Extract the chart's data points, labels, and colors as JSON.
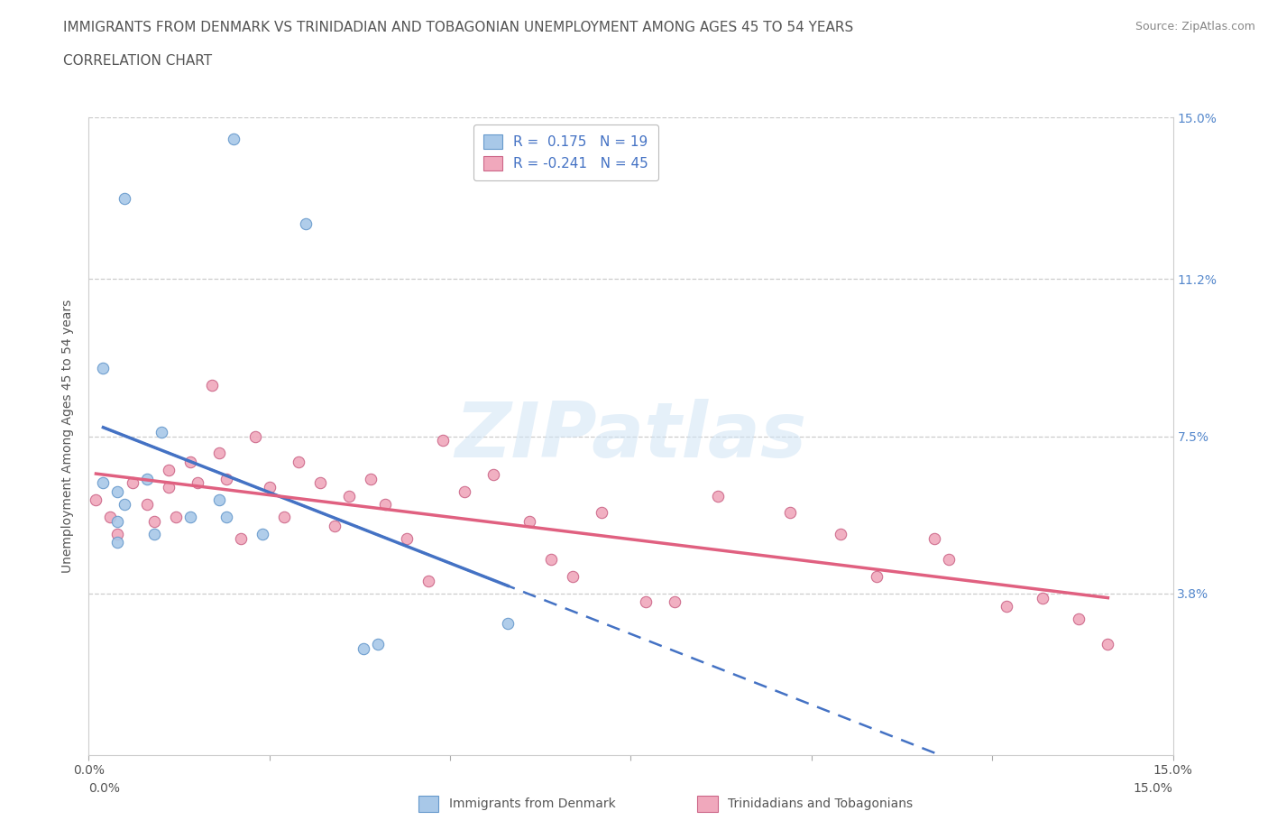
{
  "title_line1": "IMMIGRANTS FROM DENMARK VS TRINIDADIAN AND TOBAGONIAN UNEMPLOYMENT AMONG AGES 45 TO 54 YEARS",
  "title_line2": "CORRELATION CHART",
  "source_text": "Source: ZipAtlas.com",
  "ylabel": "Unemployment Among Ages 45 to 54 years",
  "xlim": [
    0.0,
    0.15
  ],
  "ylim": [
    0.0,
    0.15
  ],
  "xtick_positions": [
    0.0,
    0.025,
    0.05,
    0.075,
    0.1,
    0.125,
    0.15
  ],
  "xtick_labels": [
    "0.0%",
    "",
    "",
    "",
    "",
    "",
    "15.0%"
  ],
  "ytick_positions": [
    0.038,
    0.075,
    0.112,
    0.15
  ],
  "ytick_labels": [
    "3.8%",
    "7.5%",
    "11.2%",
    "15.0%"
  ],
  "denmark_color": "#a8c8e8",
  "denmark_edge_color": "#6699cc",
  "trinidadian_color": "#f0a8bc",
  "trinidadian_edge_color": "#cc6688",
  "denmark_line_color": "#4472c4",
  "trinidadian_line_color": "#e06080",
  "denmark_R": 0.175,
  "denmark_N": 19,
  "trinidadian_R": -0.241,
  "trinidadian_N": 45,
  "watermark": "ZIPatlas",
  "legend_label_denmark": "Immigrants from Denmark",
  "legend_label_trinidadian": "Trinidadians and Tobagonians",
  "denmark_x": [
    0.005,
    0.02,
    0.03,
    0.002,
    0.01,
    0.002,
    0.004,
    0.005,
    0.008,
    0.004,
    0.004,
    0.009,
    0.014,
    0.018,
    0.019,
    0.024,
    0.038,
    0.058,
    0.04
  ],
  "denmark_y": [
    0.131,
    0.145,
    0.125,
    0.091,
    0.076,
    0.064,
    0.062,
    0.059,
    0.065,
    0.055,
    0.05,
    0.052,
    0.056,
    0.06,
    0.056,
    0.052,
    0.025,
    0.031,
    0.026
  ],
  "trinidadian_x": [
    0.001,
    0.003,
    0.004,
    0.006,
    0.008,
    0.009,
    0.011,
    0.011,
    0.012,
    0.014,
    0.015,
    0.017,
    0.018,
    0.019,
    0.021,
    0.023,
    0.025,
    0.027,
    0.029,
    0.032,
    0.034,
    0.036,
    0.039,
    0.041,
    0.044,
    0.047,
    0.049,
    0.052,
    0.056,
    0.061,
    0.064,
    0.067,
    0.071,
    0.077,
    0.081,
    0.087,
    0.097,
    0.104,
    0.109,
    0.117,
    0.119,
    0.127,
    0.132,
    0.137,
    0.141
  ],
  "trinidadian_y": [
    0.06,
    0.056,
    0.052,
    0.064,
    0.059,
    0.055,
    0.067,
    0.063,
    0.056,
    0.069,
    0.064,
    0.087,
    0.071,
    0.065,
    0.051,
    0.075,
    0.063,
    0.056,
    0.069,
    0.064,
    0.054,
    0.061,
    0.065,
    0.059,
    0.051,
    0.041,
    0.074,
    0.062,
    0.066,
    0.055,
    0.046,
    0.042,
    0.057,
    0.036,
    0.036,
    0.061,
    0.057,
    0.052,
    0.042,
    0.051,
    0.046,
    0.035,
    0.037,
    0.032,
    0.026
  ],
  "title_fontsize": 11,
  "legend_fontsize": 11,
  "tick_fontsize": 10,
  "ylabel_fontsize": 10,
  "marker_size": 80,
  "grid_color": "#cccccc",
  "right_tick_color": "#5588cc",
  "text_color": "#555555",
  "source_color": "#888888"
}
